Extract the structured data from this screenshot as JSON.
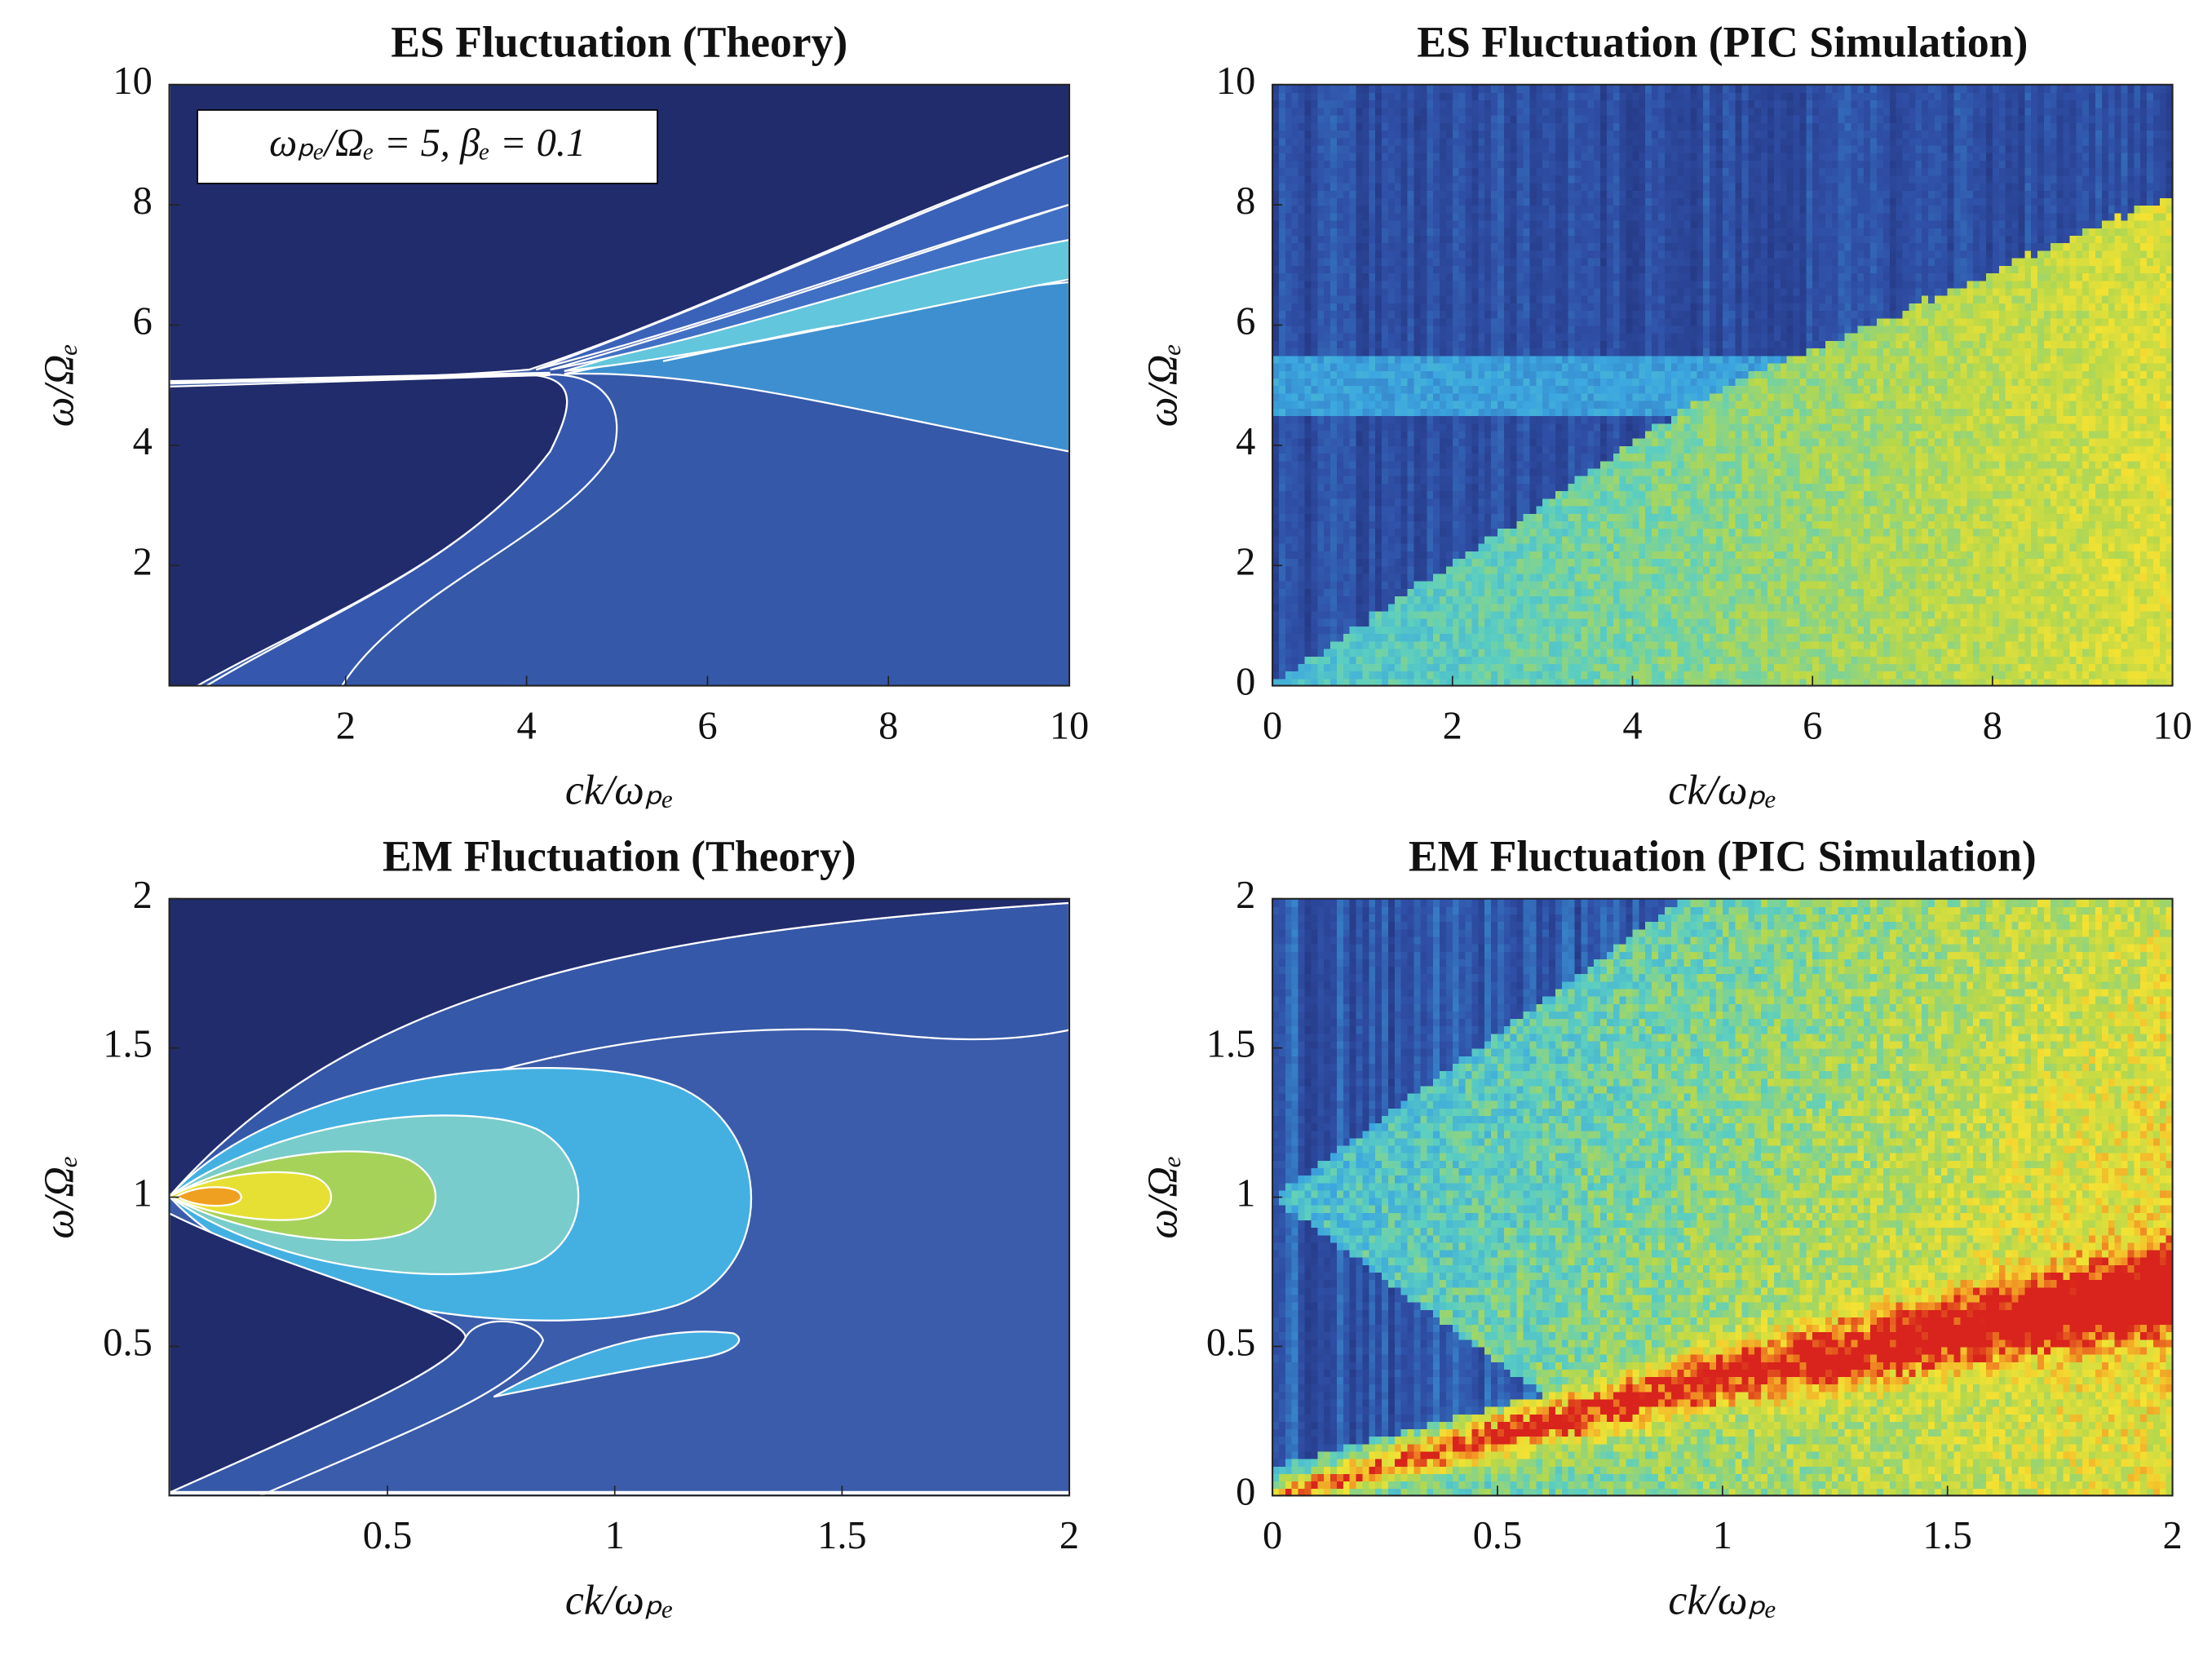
{
  "chart_data": [
    {
      "type": "contour",
      "title": "ES Fluctuation (Theory)",
      "xlabel": "ck/ωₚₑ",
      "ylabel": "ω/Ωₑ",
      "annotation": "ωₚₑ/Ωₑ = 5, βₑ = 0.1",
      "xlim": [
        0.05,
        10
      ],
      "ylim": [
        0,
        10
      ],
      "xticks": [
        2,
        4,
        6,
        8,
        10
      ],
      "yticks": [
        2,
        4,
        6,
        8,
        10
      ]
    },
    {
      "type": "heatmap",
      "title": "ES Fluctuation (PIC Simulation)",
      "xlabel": "ck/ωₚₑ",
      "ylabel": "ω/Ωₑ",
      "xlim": [
        0,
        10
      ],
      "ylim": [
        0,
        10
      ],
      "xticks": [
        0,
        2,
        4,
        6,
        8,
        10
      ],
      "yticks": [
        0,
        2,
        4,
        6,
        8,
        10
      ]
    },
    {
      "type": "contour",
      "title": "EM Fluctuation (Theory)",
      "xlabel": "ck/ωₚₑ",
      "ylabel": "ω/Ωₑ",
      "xlim": [
        0.02,
        2
      ],
      "ylim": [
        0,
        2
      ],
      "xticks": [
        0.5,
        1,
        1.5,
        2
      ],
      "yticks": [
        0.5,
        1,
        1.5,
        2
      ]
    },
    {
      "type": "heatmap",
      "title": "EM Fluctuation (PIC Simulation)",
      "xlabel": "ck/ωₚₑ",
      "ylabel": "ω/Ωₑ",
      "xlim": [
        0,
        2
      ],
      "ylim": [
        0,
        2
      ],
      "xticks": [
        0,
        0.5,
        1,
        1.5,
        2
      ],
      "yticks": [
        0,
        0.5,
        1,
        1.5,
        2
      ]
    }
  ]
}
